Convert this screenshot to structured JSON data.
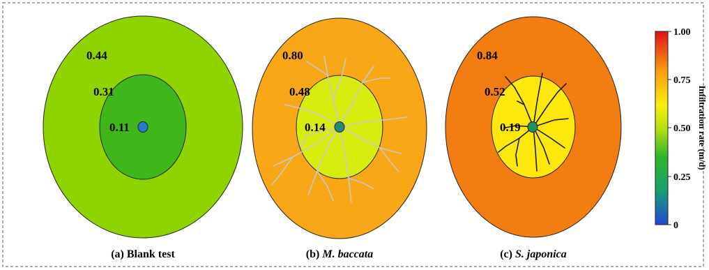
{
  "panels": [
    {
      "id": "a",
      "caption_prefix": "(a) Blank test",
      "caption_species": "",
      "roots": "none",
      "outer": {
        "label": "0.44",
        "color": "#8fd400"
      },
      "middle": {
        "label": "0.31",
        "color": "#3fb61a"
      },
      "inner": {
        "label": "0.11",
        "color": "#2878ce"
      }
    },
    {
      "id": "b",
      "caption_prefix": "(b) ",
      "caption_species": "M. baccata",
      "roots": "light",
      "outer": {
        "label": "0.80",
        "color": "#f8a716"
      },
      "middle": {
        "label": "0.48",
        "color": "#d8ec10"
      },
      "inner": {
        "label": "0.14",
        "color": "#1d8c78"
      }
    },
    {
      "id": "c",
      "caption_prefix": "(c) ",
      "caption_species": "S. japonica",
      "roots": "dark",
      "outer": {
        "label": "0.84",
        "color": "#f27e12"
      },
      "middle": {
        "label": "0.52",
        "color": "#fce80c"
      },
      "inner": {
        "label": "0.19",
        "color": "#1e9160"
      }
    }
  ],
  "colorbar": {
    "title": "Infiltration rate (m/d)",
    "ticks": [
      "1.00",
      "0.75",
      "0.50",
      "0.25",
      "0"
    ],
    "stops": [
      {
        "value": 0.0,
        "color": "#2346d8"
      },
      {
        "value": 0.18,
        "color": "#1aa070"
      },
      {
        "value": 0.35,
        "color": "#2fb52a"
      },
      {
        "value": 0.5,
        "color": "#b8e010"
      },
      {
        "value": 0.62,
        "color": "#f8ee0a"
      },
      {
        "value": 0.8,
        "color": "#f89a12"
      },
      {
        "value": 1.0,
        "color": "#e0101a"
      }
    ]
  }
}
